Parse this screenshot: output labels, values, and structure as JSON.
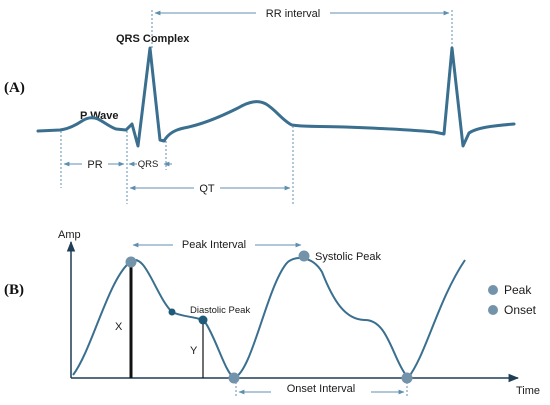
{
  "colors": {
    "wave": "#3a6f8f",
    "guide": "#5f8fae",
    "axis": "#1f3d55",
    "dot": "#7393ab",
    "dark_dot": "#1f5a78",
    "ink": "#1a1a1a"
  },
  "panel_a": {
    "label": "(A)",
    "rr_interval": "RR interval",
    "qrs_complex": "QRS Complex",
    "p_wave": "P Wave",
    "pr": "PR",
    "qrs": "QRS",
    "qt": "QT"
  },
  "panel_b": {
    "label": "(B)",
    "y_axis_label": "Amp",
    "x_axis_label": "Time",
    "peak_interval": "Peak Interval",
    "systolic_peak": "Systolic Peak",
    "diastolic_peak": "Diastolic Peak",
    "onset_interval": "Onset Interval",
    "x_marker": "X",
    "y_marker": "Y"
  },
  "legend": {
    "items": [
      {
        "label": "Peak",
        "icon": "peak-legend-dot"
      },
      {
        "label": "Onset",
        "icon": "onset-legend-dot"
      }
    ]
  }
}
